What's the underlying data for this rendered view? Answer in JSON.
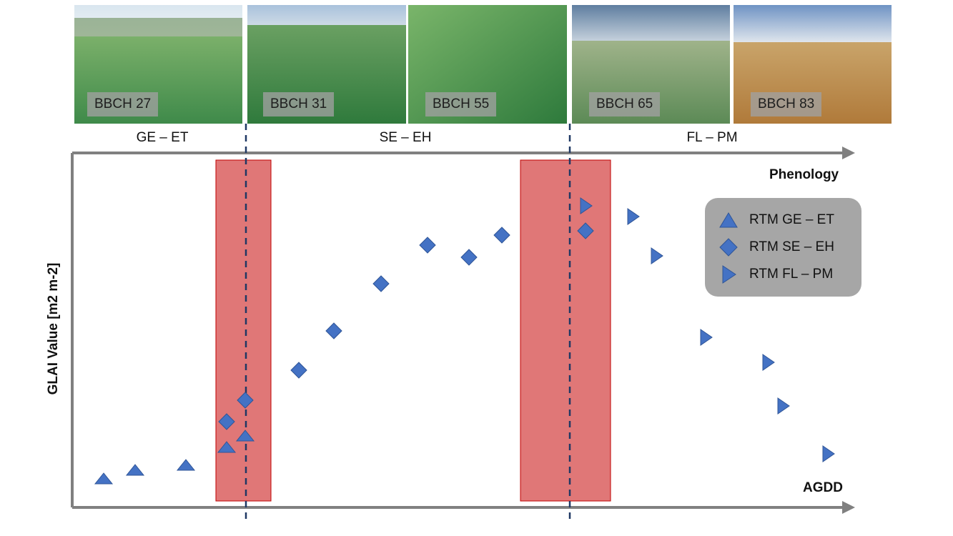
{
  "photos": [
    {
      "label": "BBCH 27"
    },
    {
      "label": "BBCH 31"
    },
    {
      "label": "BBCH 55"
    },
    {
      "label": "BBCH 65"
    },
    {
      "label": "BBCH 83"
    }
  ],
  "phases": [
    "GE – ET",
    "SE – EH",
    "FL – PM"
  ],
  "axes": {
    "top_label": "Phenology",
    "bottom_label": "AGDD",
    "y_label": "GLAI Value [m2 m-2]"
  },
  "legend": [
    {
      "label": "RTM GE – ET",
      "marker": "triangle-up-icon"
    },
    {
      "label": "RTM SE – EH",
      "marker": "diamond-icon"
    },
    {
      "label": "RTM FL – PM",
      "marker": "triangle-right-icon"
    }
  ],
  "colors": {
    "marker": "#4472c4",
    "marker_edge": "#2f5597",
    "band_fill": "#e07777",
    "band_edge": "#c00000",
    "divider": "#1f3864",
    "legend_bg": "#a6a6a6",
    "axis": "#808080"
  }
}
